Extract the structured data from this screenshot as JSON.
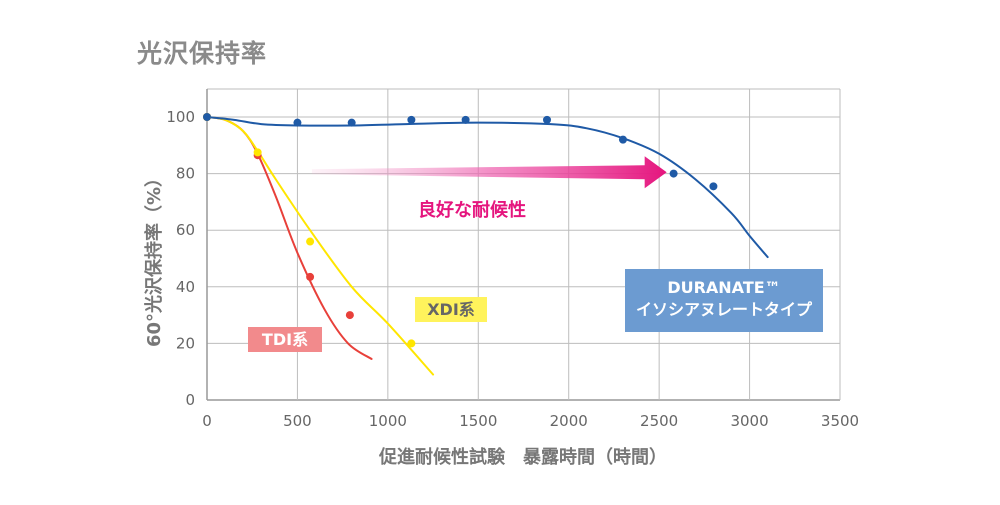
{
  "title": "光沢保持率",
  "chart_data": {
    "type": "line",
    "title": "光沢保持率",
    "xlabel": "促進耐候性試験　暴露時間（時間）",
    "ylabel": "60°光沢保持率（%）",
    "xlim": [
      0,
      3500
    ],
    "ylim": [
      0,
      110
    ],
    "xticks": [
      0,
      500,
      1000,
      1500,
      2000,
      2500,
      3000,
      3500
    ],
    "yticks": [
      0,
      20,
      40,
      60,
      80,
      100
    ],
    "grid": true,
    "series": [
      {
        "name": "DURANATE™ イソシアヌレートタイプ",
        "name_line1": "DURANATE™",
        "name_line2": "イソシアヌレートタイプ",
        "color": "#1f5aa6",
        "points": [
          [
            0,
            100
          ],
          [
            500,
            98
          ],
          [
            800,
            98
          ],
          [
            1130,
            99
          ],
          [
            1430,
            99
          ],
          [
            1880,
            99
          ],
          [
            2300,
            92
          ],
          [
            2580,
            80
          ],
          [
            2800,
            75.5
          ]
        ],
        "curve": [
          [
            0,
            100
          ],
          [
            150,
            99
          ],
          [
            300,
            97.5
          ],
          [
            500,
            97
          ],
          [
            800,
            97
          ],
          [
            1100,
            97.5
          ],
          [
            1500,
            98
          ],
          [
            1900,
            97.5
          ],
          [
            2100,
            96
          ],
          [
            2300,
            92.5
          ],
          [
            2500,
            87
          ],
          [
            2700,
            78
          ],
          [
            2900,
            66
          ],
          [
            3000,
            58
          ],
          [
            3100,
            50.5
          ]
        ]
      },
      {
        "name": "XDI系",
        "color": "#ffe600",
        "points": [
          [
            0,
            100
          ],
          [
            280,
            87.5
          ],
          [
            570,
            56
          ],
          [
            1130,
            20
          ]
        ],
        "curve": [
          [
            0,
            100
          ],
          [
            100,
            99
          ],
          [
            200,
            95
          ],
          [
            280,
            88
          ],
          [
            380,
            78
          ],
          [
            570,
            60
          ],
          [
            800,
            40
          ],
          [
            1000,
            27
          ],
          [
            1250,
            9
          ]
        ]
      },
      {
        "name": "TDI系",
        "color": "#e8403a",
        "points": [
          [
            0,
            100
          ],
          [
            280,
            86.5
          ],
          [
            570,
            43.5
          ],
          [
            790,
            30
          ]
        ],
        "curve": [
          [
            0,
            100
          ],
          [
            100,
            99
          ],
          [
            200,
            95
          ],
          [
            280,
            87
          ],
          [
            380,
            72
          ],
          [
            500,
            52
          ],
          [
            650,
            32
          ],
          [
            780,
            20
          ],
          [
            910,
            14.5
          ]
        ]
      }
    ],
    "annotations": [
      {
        "text": "良好な耐候性",
        "color": "#e5157e",
        "arrow_from": [
          580,
          78
        ],
        "arrow_to": [
          2420,
          78
        ]
      }
    ]
  }
}
